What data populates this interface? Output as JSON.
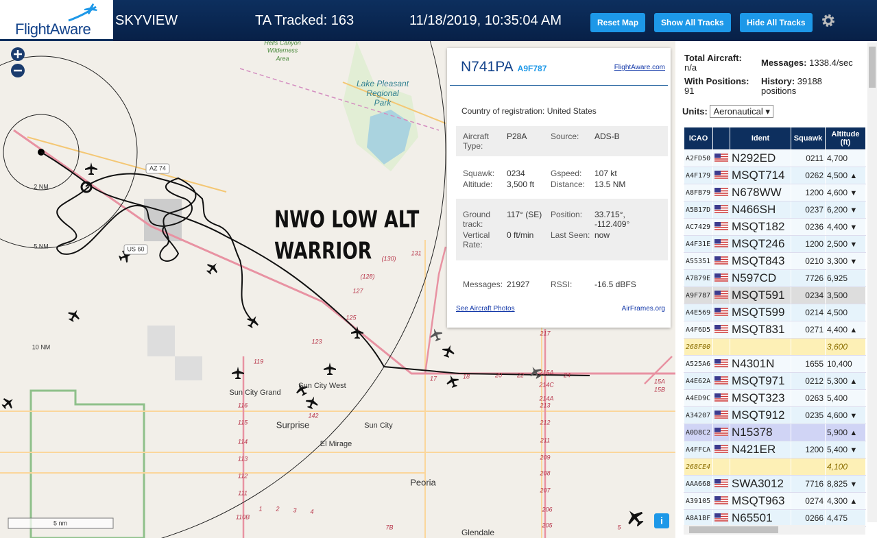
{
  "header": {
    "logo": "FlightAware",
    "title": "SKYVIEW",
    "tracked": "TA Tracked: 163",
    "datetime": "11/18/2019, 10:35:04 AM",
    "buttons": [
      "Reset Map",
      "Show All Tracks",
      "Hide All Tracks"
    ]
  },
  "map": {
    "labels": [
      "Hells Canyon",
      "Wilderness",
      "Area",
      "Lake Pleasant",
      "Regional",
      "Park",
      "AZ 74",
      "US 60",
      "2 NM",
      "5 NM",
      "10 NM",
      "NWO LOW ALT",
      "WARRIOR",
      "Sun City Grand",
      "Sun City West",
      "Surprise",
      "Sun City",
      "El Mirage",
      "Peoria",
      "Glendale",
      "131",
      "(130)",
      "(128)",
      "127",
      "125",
      "123",
      "119",
      "116",
      "115",
      "114",
      "113",
      "112",
      "111",
      "110B",
      "142",
      "217",
      "215A",
      "214C",
      "214A",
      "213",
      "212",
      "211",
      "209",
      "208",
      "207",
      "206",
      "205",
      "15A",
      "15B",
      "17",
      "18",
      "20",
      "22",
      "24",
      "1",
      "2",
      "3",
      "4",
      "5",
      "7B"
    ],
    "scale": "5 nm",
    "info": "i"
  },
  "popup": {
    "ident": "N741PA",
    "hex": "A9F787",
    "link": "FlightAware.com",
    "country_label": "Country of registration:",
    "country": "United States",
    "sections": [
      [
        {
          "label": "Aircraft Type:",
          "value": "P28A"
        },
        {
          "label": "Source:",
          "value": "ADS-B"
        }
      ],
      [
        {
          "label": "Squawk:",
          "value": "0234"
        },
        {
          "label": "Gspeed:",
          "value": "107 kt"
        },
        {
          "label": "Altitude:",
          "value": "3,500 ft"
        },
        {
          "label": "Distance:",
          "value": "13.5 NM"
        }
      ],
      [
        {
          "label": "Ground track:",
          "value": "117° (SE)"
        },
        {
          "label": "Position:",
          "value": "33.715°, -112.409°"
        },
        {
          "label": "Vertical Rate:",
          "value": "0 ft/min"
        },
        {
          "label": "Last Seen:",
          "value": "now"
        }
      ],
      [
        {
          "label": "Messages:",
          "value": "21927"
        },
        {
          "label": "RSSI:",
          "value": "-16.5 dBFS"
        }
      ]
    ],
    "photos": "See Aircraft Photos",
    "airframes": "AirFrames.org"
  },
  "sidebar": {
    "total_label": "Total Aircraft:",
    "total": "n/a",
    "messages_label": "Messages:",
    "messages": "1338.4/sec",
    "positions_label": "With Positions:",
    "positions": "91",
    "history_label": "History:",
    "history": "39188 positions",
    "units_label": "Units:",
    "units": "Aeronautical",
    "columns": [
      "ICAO",
      "Ident",
      "Squawk",
      "Altitude (ft)"
    ],
    "rows": [
      {
        "icao": "A2FD50",
        "ident": "N292ED",
        "squawk": "0211",
        "altitude": "4,700"
      },
      {
        "icao": "A4F179",
        "ident": "MSQT714",
        "squawk": "0262",
        "altitude": "4,500",
        "trend": "▲"
      },
      {
        "icao": "A8FB79",
        "ident": "N678WW",
        "squawk": "1200",
        "altitude": "4,600",
        "trend": "▼"
      },
      {
        "icao": "A5B17D",
        "ident": "N466SH",
        "squawk": "0237",
        "altitude": "6,200",
        "trend": "▼"
      },
      {
        "icao": "AC7429",
        "ident": "MSQT182",
        "squawk": "0236",
        "altitude": "4,400",
        "trend": "▼"
      },
      {
        "icao": "A4F31E",
        "ident": "MSQT246",
        "squawk": "1200",
        "altitude": "2,500",
        "trend": "▼"
      },
      {
        "icao": "A55351",
        "ident": "MSQT843",
        "squawk": "0210",
        "altitude": "3,300",
        "trend": "▼"
      },
      {
        "icao": "A7B79E",
        "ident": "N597CD",
        "squawk": "7726",
        "altitude": "6,925"
      },
      {
        "icao": "A9F787",
        "ident": "MSQT591",
        "squawk": "0234",
        "altitude": "3,500",
        "state": "selected"
      },
      {
        "icao": "A4E569",
        "ident": "MSQT599",
        "squawk": "0214",
        "altitude": "4,500"
      },
      {
        "icao": "A4F6D5",
        "ident": "MSQT831",
        "squawk": "0271",
        "altitude": "4,400",
        "trend": "▲"
      },
      {
        "icao": "268F00",
        "altitude": "3,600"
      },
      {
        "icao": "A525A6",
        "ident": "N4301N",
        "squawk": "1655",
        "altitude": "10,400"
      },
      {
        "icao": "A4E62A",
        "ident": "MSQT971",
        "squawk": "0212",
        "altitude": "5,300",
        "trend": "▲"
      },
      {
        "icao": "A4ED9C",
        "ident": "MSQT323",
        "squawk": "0263",
        "altitude": "5,400"
      },
      {
        "icao": "A34207",
        "ident": "MSQT912",
        "squawk": "0235",
        "altitude": "4,600",
        "trend": "▼"
      },
      {
        "icao": "A0D8C2",
        "ident": "N15378",
        "altitude": "5,900",
        "trend": "▲",
        "state": "hover"
      },
      {
        "icao": "A4FFCA",
        "ident": "N421ER",
        "squawk": "1200",
        "altitude": "5,400",
        "trend": "▼"
      },
      {
        "icao": "268CE4",
        "altitude": "4,100"
      },
      {
        "icao": "AAA668",
        "ident": "SWA3012",
        "squawk": "7716",
        "altitude": "8,825",
        "trend": "▼"
      },
      {
        "icao": "A39105",
        "ident": "MSQT963",
        "squawk": "0274",
        "altitude": "4,300",
        "trend": "▲"
      },
      {
        "icao": "A8A1BF",
        "ident": "N65501",
        "squawk": "0266",
        "altitude": "4,475"
      }
    ]
  }
}
